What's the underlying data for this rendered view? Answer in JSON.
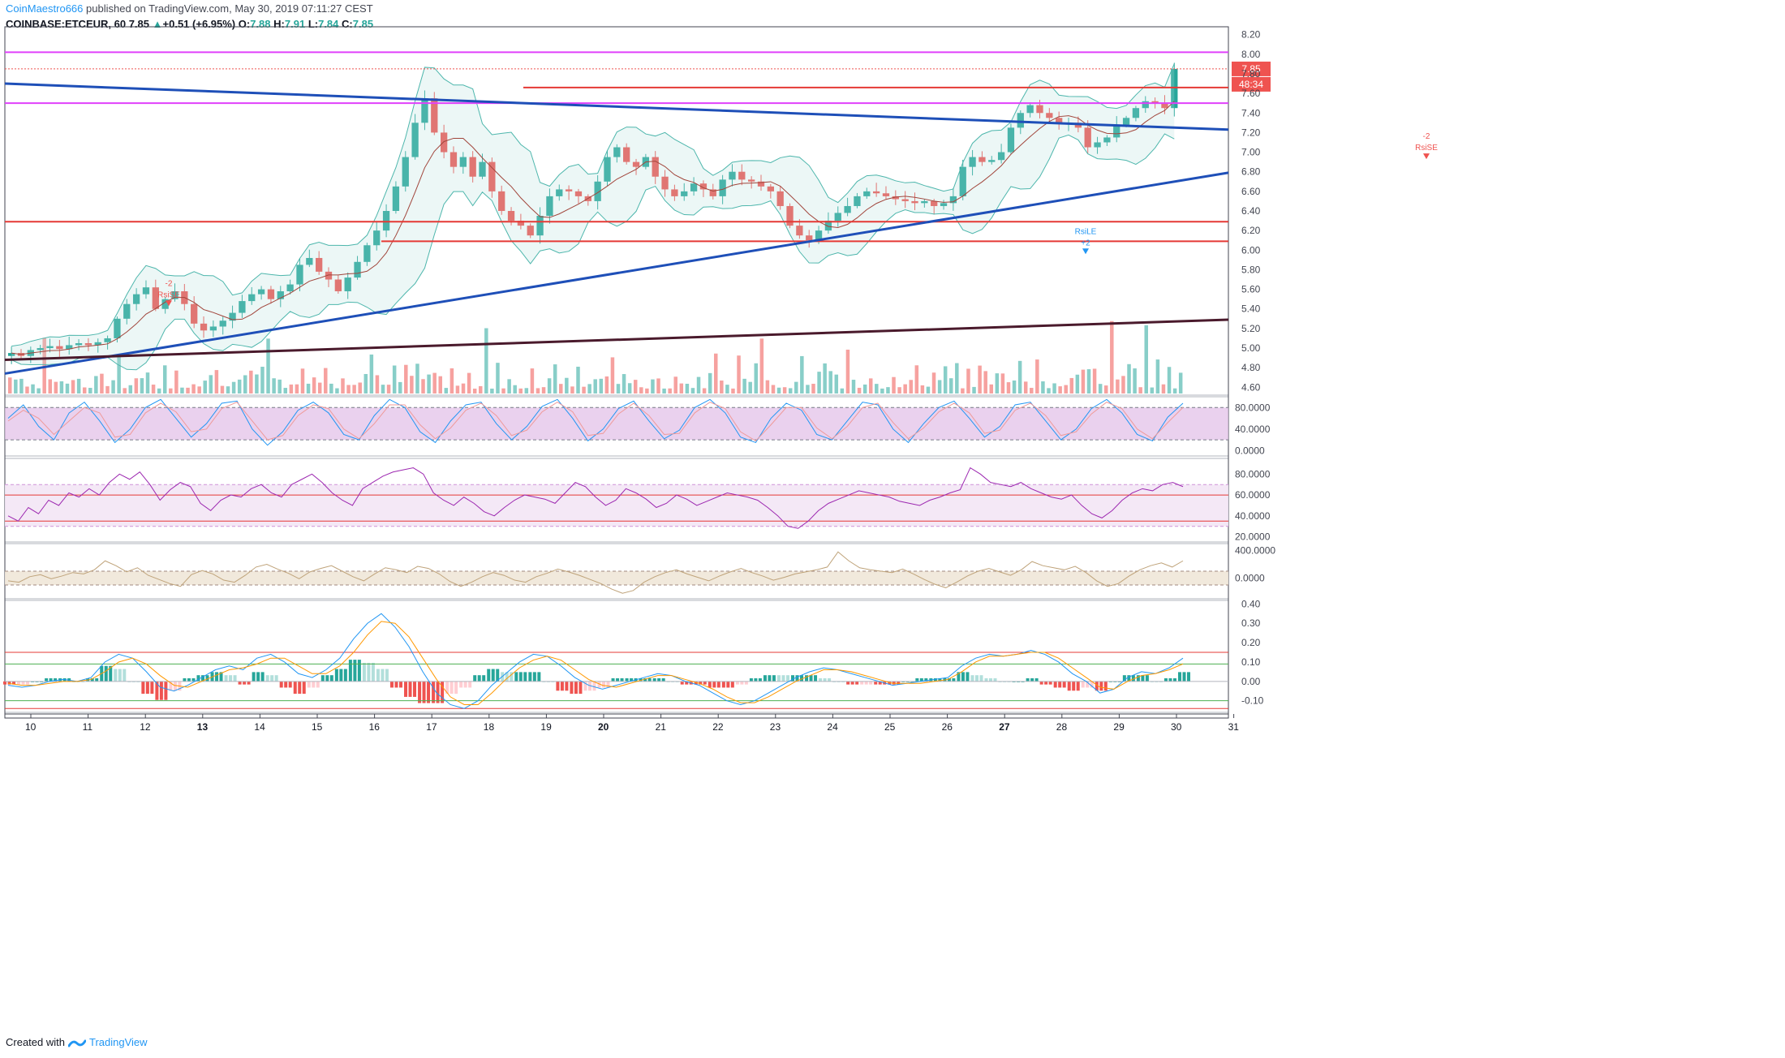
{
  "header": {
    "author": "CoinMaestro666",
    "published_text": "published on TradingView.com, May 30, 2019 07:11:27 CEST",
    "symbol": "COINBASE:ETCEUR, 60",
    "last": "7.85",
    "up_arrow": "▲",
    "change": "+0.51 (+6.95%)",
    "o_label": "O:",
    "o": "7.88",
    "h_label": "H:",
    "h": "7.91",
    "l_label": "L:",
    "l": "7.84",
    "c_label": "C:",
    "c": "7.85"
  },
  "footer": {
    "created_with": "Created with",
    "brand": "TradingView"
  },
  "colors": {
    "up": "#26a69a",
    "down": "#ef5350",
    "magenta": "#e040fb",
    "red_level": "#e53935",
    "trend_blue": "#1e4fb8",
    "trend_dark": "#4a1a2c",
    "band": "#4db6ac",
    "stoch_fill": "#e1bee7",
    "rsi_fill": "#f3e5f5",
    "cci_fill": "#efe7d8"
  },
  "price_badge": {
    "price": "7.85",
    "countdown": "48:34"
  },
  "chart_data": [
    {
      "type": "candlestick",
      "name": "COINBASE:ETCEUR, 60",
      "x_ticks": [
        "10",
        "11",
        "12",
        "13",
        "14",
        "15",
        "16",
        "17",
        "18",
        "19",
        "20",
        "21",
        "22",
        "23",
        "24",
        "25",
        "26",
        "27",
        "28",
        "29",
        "30",
        "31"
      ],
      "y_ticks": [
        "8.20",
        "8.00",
        "7.80",
        "7.60",
        "7.40",
        "7.20",
        "7.00",
        "6.80",
        "6.60",
        "6.40",
        "6.20",
        "6.00",
        "5.80",
        "5.60",
        "5.40",
        "5.20",
        "5.00",
        "4.80",
        "4.60"
      ],
      "ylim": [
        4.52,
        8.28
      ],
      "last_price": 7.85,
      "closes": [
        4.95,
        4.92,
        4.98,
        5.0,
        5.02,
        4.99,
        5.03,
        5.05,
        5.03,
        5.06,
        5.1,
        5.3,
        5.45,
        5.55,
        5.62,
        5.4,
        5.5,
        5.58,
        5.45,
        5.25,
        5.18,
        5.22,
        5.28,
        5.36,
        5.48,
        5.55,
        5.6,
        5.5,
        5.58,
        5.65,
        5.85,
        5.92,
        5.78,
        5.7,
        5.58,
        5.72,
        5.88,
        6.05,
        6.2,
        6.4,
        6.65,
        6.95,
        7.3,
        7.55,
        7.2,
        7.0,
        6.85,
        6.95,
        6.75,
        6.9,
        6.6,
        6.4,
        6.3,
        6.25,
        6.15,
        6.35,
        6.55,
        6.62,
        6.6,
        6.55,
        6.5,
        6.7,
        6.95,
        7.05,
        6.9,
        6.85,
        6.95,
        6.75,
        6.62,
        6.55,
        6.6,
        6.68,
        6.62,
        6.55,
        6.72,
        6.8,
        6.72,
        6.7,
        6.65,
        6.6,
        6.45,
        6.25,
        6.15,
        6.1,
        6.2,
        6.3,
        6.38,
        6.45,
        6.55,
        6.6,
        6.58,
        6.55,
        6.52,
        6.5,
        6.48,
        6.5,
        6.45,
        6.48,
        6.55,
        6.85,
        6.95,
        6.9,
        6.92,
        7.0,
        7.25,
        7.4,
        7.48,
        7.4,
        7.35,
        7.3,
        7.3,
        7.25,
        7.05,
        7.1,
        7.15,
        7.28,
        7.35,
        7.45,
        7.52,
        7.5,
        7.45,
        7.85
      ],
      "extremes": {
        "high": 7.68,
        "low": 4.88,
        "last_high": 7.97
      },
      "bollinger_bands": "20-period upper/middle/lower bands with shaded fill",
      "annotations": [
        "-2 RsiSE",
        "-2 RsiSE",
        "RsiLE +2"
      ],
      "horizontal_levels": [
        {
          "y": 8.02,
          "color": "magenta"
        },
        {
          "y": 7.5,
          "color": "magenta"
        },
        {
          "y": 7.66,
          "color": "red"
        },
        {
          "y": 6.29,
          "color": "red"
        },
        {
          "y": 6.09,
          "color": "red"
        }
      ],
      "trendlines": [
        {
          "points": [
            [
              0,
              7.7
            ],
            [
              31,
              7.23
            ]
          ],
          "color": "blue"
        },
        {
          "points": [
            [
              0,
              4.74
            ],
            [
              31,
              6.79
            ]
          ],
          "color": "blue"
        },
        {
          "points": [
            [
              0,
              4.88
            ],
            [
              31,
              5.29
            ]
          ],
          "color": "dark"
        }
      ],
      "volume": "histogram bars colored by candle direction"
    },
    {
      "type": "line",
      "name": "Stochastic RSI",
      "y_ticks": [
        "80.0000",
        "40.0000",
        "0.0000"
      ],
      "ylim": [
        -10,
        100
      ],
      "bands": [
        20,
        80
      ],
      "series": [
        {
          "values": [
            60,
            85,
            45,
            20,
            70,
            90,
            55,
            15,
            40,
            80,
            95,
            60,
            25,
            50,
            88,
            92,
            40,
            10,
            35,
            75,
            90,
            70,
            30,
            20,
            65,
            95,
            80,
            35,
            15,
            55,
            85,
            90,
            50,
            20,
            45,
            82,
            95,
            60,
            18,
            40,
            78,
            92,
            55,
            22,
            38,
            80,
            95,
            70,
            25,
            15,
            60,
            88,
            75,
            30,
            20,
            55,
            90,
            85,
            40,
            15,
            50,
            80,
            92,
            60,
            25,
            45,
            85,
            90,
            55,
            20,
            40,
            78,
            95,
            70,
            30,
            18,
            62,
            88
          ]
        },
        {
          "values": [
            55,
            75,
            60,
            30,
            55,
            80,
            70,
            25,
            30,
            70,
            88,
            72,
            35,
            40,
            78,
            90,
            55,
            20,
            28,
            65,
            85,
            78,
            40,
            22,
            50,
            85,
            85,
            48,
            22,
            42,
            75,
            88,
            65,
            28,
            38,
            72,
            90,
            72,
            28,
            32,
            68,
            88,
            65,
            30,
            32,
            70,
            90,
            78,
            35,
            18,
            48,
            80,
            80,
            42,
            22,
            45,
            80,
            88,
            52,
            22,
            42,
            72,
            88,
            70,
            32,
            38,
            75,
            88,
            65,
            28,
            35,
            68,
            90,
            78,
            40,
            22,
            52,
            80
          ]
        }
      ]
    },
    {
      "type": "line",
      "name": "RSI",
      "y_ticks": [
        "80.0000",
        "60.0000",
        "40.0000",
        "20.0000"
      ],
      "ylim": [
        15,
        95
      ],
      "levels": [
        30,
        70,
        60,
        35
      ],
      "values": [
        40,
        35,
        48,
        42,
        55,
        50,
        62,
        58,
        66,
        60,
        72,
        80,
        75,
        82,
        70,
        55,
        65,
        72,
        68,
        52,
        45,
        55,
        60,
        58,
        66,
        70,
        62,
        58,
        70,
        75,
        80,
        72,
        62,
        55,
        50,
        66,
        72,
        78,
        82,
        84,
        86,
        80,
        62,
        55,
        50,
        58,
        52,
        44,
        40,
        48,
        55,
        60,
        58,
        56,
        52,
        62,
        72,
        68,
        58,
        50,
        55,
        66,
        62,
        56,
        48,
        52,
        60,
        56,
        50,
        54,
        58,
        62,
        60,
        58,
        55,
        48,
        40,
        30,
        28,
        35,
        45,
        52,
        56,
        60,
        64,
        62,
        60,
        58,
        54,
        52,
        50,
        55,
        58,
        62,
        65,
        86,
        80,
        72,
        70,
        68,
        72,
        66,
        62,
        58,
        56,
        60,
        50,
        42,
        38,
        45,
        55,
        62,
        66,
        64,
        70,
        72,
        68
      ]
    },
    {
      "type": "line",
      "name": "CCI",
      "y_ticks": [
        "400.0000",
        "0.0000"
      ],
      "ylim": [
        -300,
        500
      ],
      "levels": [
        100,
        -100
      ],
      "values": [
        -40,
        -60,
        20,
        50,
        -10,
        30,
        80,
        60,
        120,
        250,
        180,
        90,
        150,
        40,
        -20,
        -80,
        -120,
        50,
        110,
        60,
        -30,
        -60,
        40,
        160,
        200,
        130,
        70,
        -10,
        90,
        140,
        180,
        100,
        20,
        -40,
        60,
        150,
        120,
        80,
        170,
        140,
        60,
        -50,
        -120,
        -60,
        20,
        80,
        40,
        -30,
        -60,
        20,
        70,
        130,
        90,
        40,
        -20,
        -80,
        -160,
        -220,
        -180,
        -60,
        20,
        80,
        120,
        60,
        10,
        -40,
        30,
        90,
        140,
        80,
        30,
        -30,
        10,
        60,
        90,
        120,
        160,
        380,
        250,
        150,
        120,
        100,
        80,
        130,
        60,
        -20,
        -90,
        -140,
        -60,
        30,
        100,
        140,
        90,
        40,
        120,
        240,
        180,
        150,
        120,
        170,
        80,
        -40,
        -120,
        -80,
        30,
        120,
        180,
        220,
        160,
        250
      ]
    },
    {
      "type": "line",
      "name": "MACD",
      "y_ticks": [
        "0.40",
        "0.30",
        "0.20",
        "0.10",
        "0.00",
        "-0.10"
      ],
      "ylim": [
        -0.16,
        0.41
      ],
      "levels": [
        0.15,
        0.09,
        0.0,
        -0.1,
        -0.14
      ],
      "series": [
        {
          "name": "MACD",
          "values": [
            -0.02,
            -0.03,
            -0.02,
            0.0,
            0.01,
            0.0,
            0.02,
            0.1,
            0.14,
            0.12,
            0.05,
            -0.03,
            -0.05,
            -0.02,
            0.02,
            0.06,
            0.08,
            0.06,
            0.12,
            0.14,
            0.1,
            0.04,
            0.02,
            0.06,
            0.12,
            0.22,
            0.3,
            0.35,
            0.28,
            0.18,
            0.05,
            -0.06,
            -0.12,
            -0.14,
            -0.1,
            -0.02,
            0.04,
            0.1,
            0.14,
            0.13,
            0.08,
            0.02,
            -0.02,
            -0.04,
            -0.02,
            0.0,
            0.02,
            0.04,
            0.03,
            0.0,
            -0.02,
            -0.06,
            -0.1,
            -0.12,
            -0.1,
            -0.06,
            -0.02,
            0.02,
            0.05,
            0.07,
            0.06,
            0.04,
            0.02,
            0.0,
            -0.02,
            -0.01,
            0.0,
            0.01,
            0.02,
            0.08,
            0.12,
            0.14,
            0.13,
            0.14,
            0.16,
            0.14,
            0.1,
            0.04,
            0.0,
            -0.06,
            -0.04,
            0.02,
            0.05,
            0.04,
            0.07,
            0.12
          ]
        },
        {
          "name": "Signal",
          "values": [
            -0.01,
            -0.02,
            -0.02,
            -0.01,
            0.0,
            0.0,
            0.01,
            0.05,
            0.1,
            0.12,
            0.09,
            0.03,
            -0.02,
            -0.03,
            0.0,
            0.03,
            0.06,
            0.07,
            0.09,
            0.12,
            0.12,
            0.08,
            0.04,
            0.04,
            0.08,
            0.15,
            0.24,
            0.31,
            0.3,
            0.23,
            0.12,
            0.01,
            -0.08,
            -0.12,
            -0.12,
            -0.06,
            0.01,
            0.07,
            0.11,
            0.13,
            0.11,
            0.06,
            0.01,
            -0.02,
            -0.03,
            -0.01,
            0.01,
            0.03,
            0.03,
            0.01,
            -0.01,
            -0.04,
            -0.08,
            -0.11,
            -0.11,
            -0.08,
            -0.04,
            0.0,
            0.03,
            0.06,
            0.06,
            0.05,
            0.03,
            0.01,
            -0.01,
            -0.01,
            -0.01,
            0.0,
            0.01,
            0.05,
            0.1,
            0.13,
            0.13,
            0.14,
            0.15,
            0.15,
            0.12,
            0.07,
            0.02,
            -0.03,
            -0.04,
            0.0,
            0.03,
            0.04,
            0.06,
            0.09
          ]
        }
      ]
    }
  ]
}
